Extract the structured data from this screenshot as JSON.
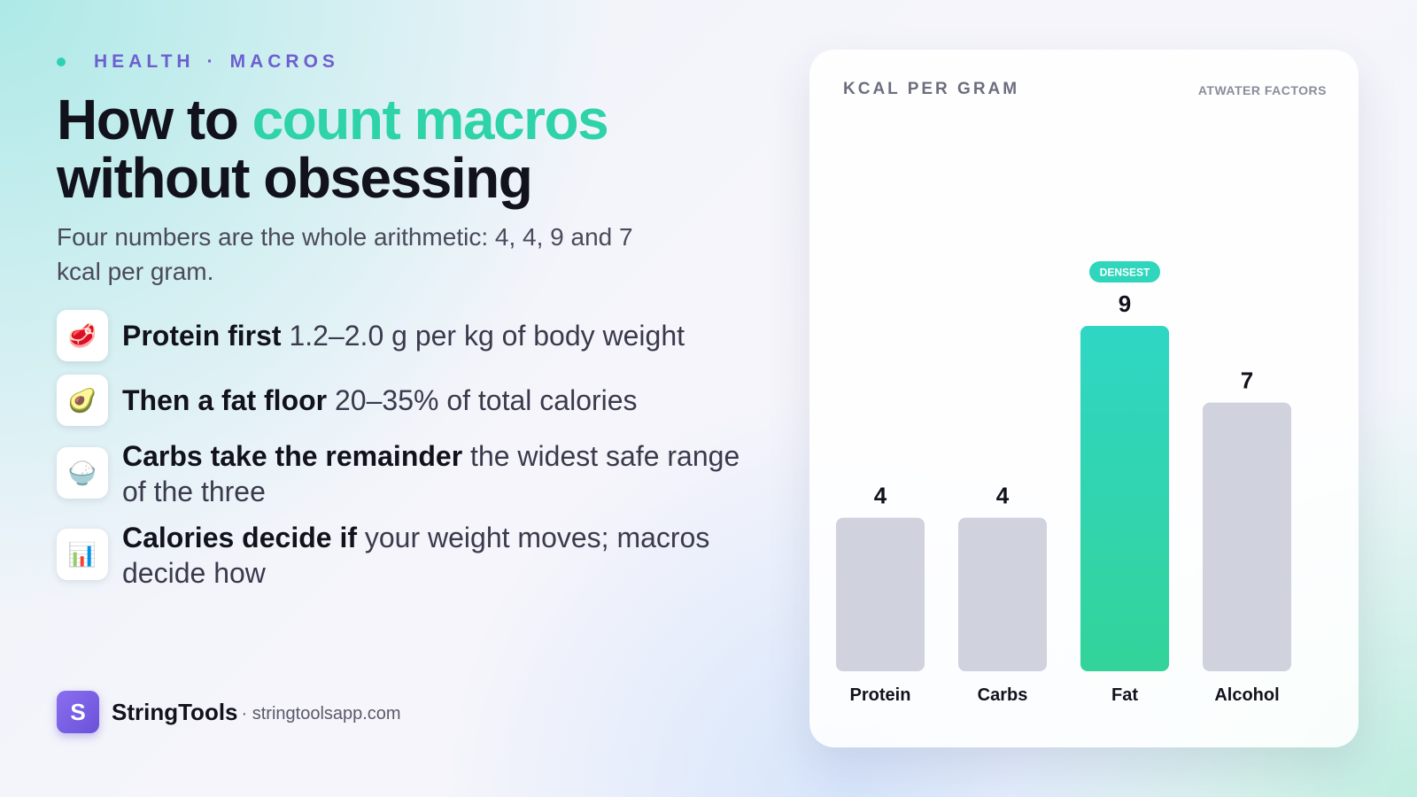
{
  "eyebrow": {
    "left": "HEALTH",
    "sep": "·",
    "right": "MACROS"
  },
  "title": {
    "part1": "How to",
    "accent": "count macros",
    "line2": "without obsessing"
  },
  "subtitle": "Four numbers are the whole arithmetic: 4, 4, 9 and 7 kcal per gram.",
  "items": [
    {
      "icon": "🥩",
      "icon_name": "steak-icon",
      "bold": "Protein first",
      "rest": "1.2–2.0 g per kg of body weight"
    },
    {
      "icon": "🥑",
      "icon_name": "avocado-icon",
      "bold": "Then a fat floor",
      "rest": "20–35% of total calories"
    },
    {
      "icon": "🍚",
      "icon_name": "rice-bowl-icon",
      "bold": "Carbs take the remainder",
      "rest": "the widest safe range of the three"
    },
    {
      "icon": "📊",
      "icon_name": "bar-chart-icon",
      "bold": "Calories decide if",
      "rest": "your weight moves; macros decide how"
    }
  ],
  "brand": {
    "logo_letter": "S",
    "name": "StringTools",
    "url": "· stringtoolsapp.com"
  },
  "colors": {
    "accent": "#2fd3a9",
    "brand": "#6d5fd0",
    "bar_default": "#d0d3de",
    "bar_highlight": "#2fd6bc"
  },
  "chart_data": {
    "type": "bar",
    "title": "KCAL PER GRAM",
    "note": "ATWATER FACTORS",
    "categories": [
      "Protein",
      "Carbs",
      "Fat",
      "Alcohol"
    ],
    "values": [
      4,
      4,
      9,
      7
    ],
    "highlight": {
      "category": "Fat",
      "badge": "DENSEST"
    },
    "ylim": [
      0,
      13.5
    ],
    "grid": false,
    "legend": "none"
  }
}
